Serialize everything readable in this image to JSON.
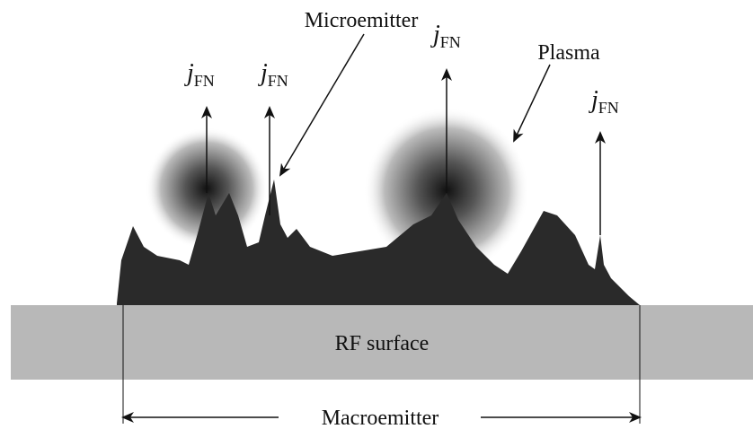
{
  "labels": {
    "microemitter": "Microemitter",
    "plasma": "Plasma",
    "surface": "RF surface",
    "macroemitter": "Macroemitter"
  },
  "current_labels": [
    {
      "symbol": "j",
      "subscript": "FN"
    },
    {
      "symbol": "j",
      "subscript": "FN"
    },
    {
      "symbol": "j",
      "subscript": "FN"
    },
    {
      "symbol": "j",
      "subscript": "FN"
    }
  ]
}
